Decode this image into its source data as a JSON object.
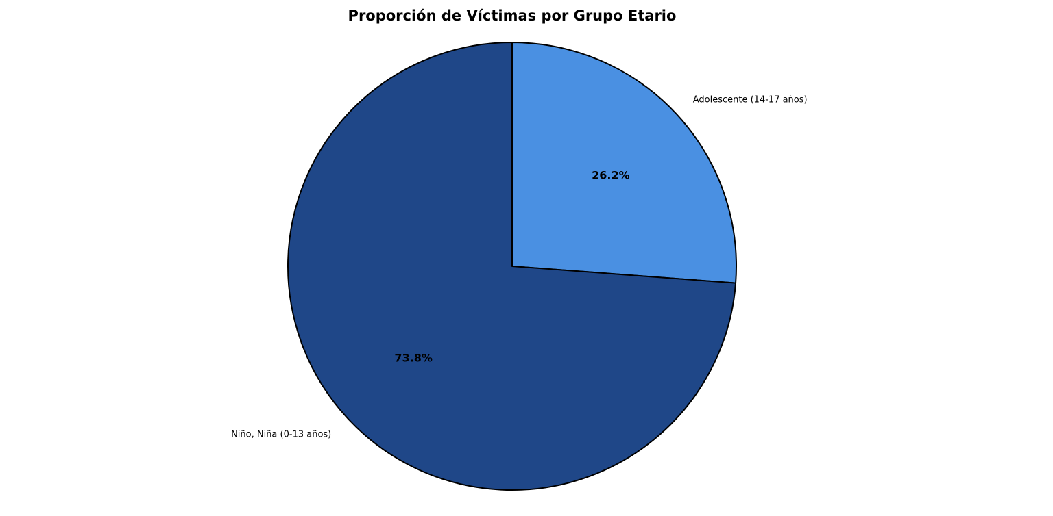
{
  "chart_data": {
    "type": "pie",
    "title": "Proporción de Víctimas por Grupo Etario",
    "categories": [
      "Adolescente (14-17 años)",
      "Niño, Niña (0-13 años)"
    ],
    "values": [
      26.2,
      73.8
    ],
    "percent_labels": [
      "26.2%",
      "73.8%"
    ],
    "colors": [
      "#4A90E2",
      "#1F4788"
    ],
    "edge_color": "#000000",
    "start_angle_deg": 90,
    "direction": "clockwise"
  }
}
